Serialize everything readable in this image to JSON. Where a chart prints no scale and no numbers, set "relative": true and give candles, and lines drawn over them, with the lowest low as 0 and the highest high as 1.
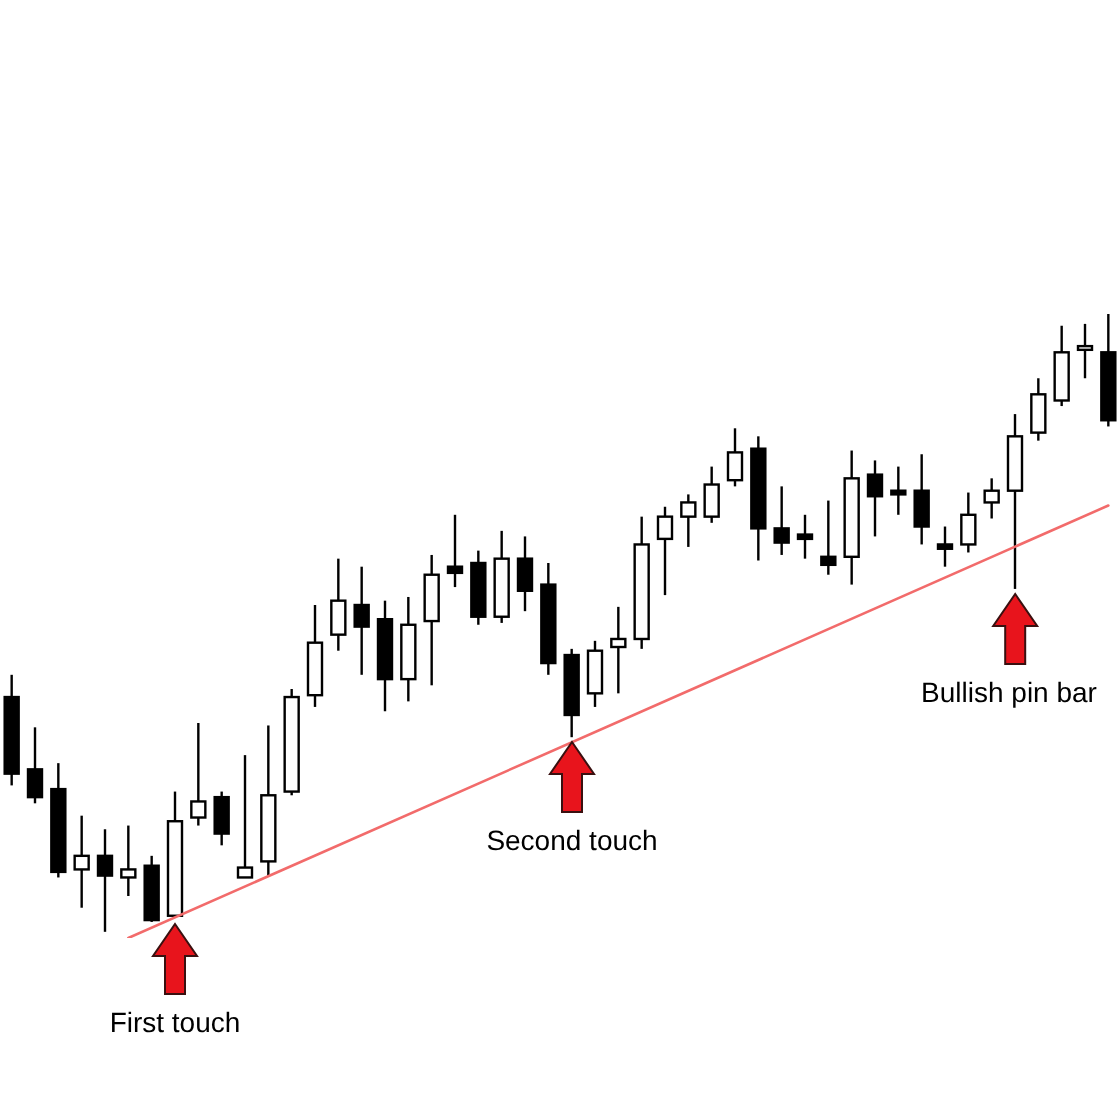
{
  "chart_data": {
    "type": "candlestick",
    "relative": true,
    "tick_labels": false,
    "categories": [
      null,
      null,
      null,
      null,
      null,
      null,
      null,
      null,
      null,
      null,
      null,
      null,
      null,
      null,
      null,
      null,
      null,
      null,
      null,
      null,
      null,
      null,
      null,
      null,
      null,
      null,
      null,
      null,
      null,
      null,
      null,
      null,
      null,
      null,
      null,
      null,
      null,
      null,
      null,
      null,
      null,
      null,
      null,
      null,
      null,
      null,
      null,
      null
    ],
    "series": [
      {
        "color": "#000000",
        "ohlc": [
          [
            0.38,
            0.416,
            0.237,
            0.256
          ],
          [
            0.263,
            0.331,
            0.208,
            0.218
          ],
          [
            0.231,
            0.273,
            0.088,
            0.097
          ],
          [
            0.101,
            0.188,
            0.039,
            0.123
          ],
          [
            0.123,
            0.166,
            0,
            0.091
          ],
          [
            0.088,
            0.172,
            0.058,
            0.101
          ],
          [
            0.107,
            0.123,
            0.016,
            0.019
          ],
          [
            0.026,
            0.227,
            0.023,
            0.179
          ],
          [
            0.185,
            0.338,
            0.172,
            0.211
          ],
          [
            0.218,
            0.227,
            0.14,
            0.159
          ],
          [
            0.088,
            0.286,
            0.088,
            0.104
          ],
          [
            0.114,
            0.334,
            0.091,
            0.221
          ],
          [
            0.227,
            0.393,
            0.221,
            0.38
          ],
          [
            0.383,
            0.529,
            0.364,
            0.468
          ],
          [
            0.481,
            0.604,
            0.455,
            0.536
          ],
          [
            0.529,
            0.591,
            0.416,
            0.494
          ],
          [
            0.506,
            0.536,
            0.357,
            0.409
          ],
          [
            0.409,
            0.542,
            0.373,
            0.497
          ],
          [
            0.503,
            0.61,
            0.399,
            0.578
          ],
          [
            0.591,
            0.675,
            0.558,
            0.581
          ],
          [
            0.597,
            0.617,
            0.497,
            0.51
          ],
          [
            0.51,
            0.649,
            0.5,
            0.604
          ],
          [
            0.604,
            0.64,
            0.519,
            0.552
          ],
          [
            0.562,
            0.597,
            0.416,
            0.435
          ],
          [
            0.448,
            0.458,
            0.315,
            0.351
          ],
          [
            0.386,
            0.471,
            0.364,
            0.455
          ],
          [
            0.461,
            0.526,
            0.386,
            0.474
          ],
          [
            0.474,
            0.672,
            0.458,
            0.627
          ],
          [
            0.636,
            0.688,
            0.545,
            0.672
          ],
          [
            0.672,
            0.708,
            0.623,
            0.695
          ],
          [
            0.672,
            0.753,
            0.662,
            0.724
          ],
          [
            0.731,
            0.815,
            0.721,
            0.776
          ],
          [
            0.782,
            0.802,
            0.601,
            0.653
          ],
          [
            0.653,
            0.721,
            0.61,
            0.63
          ],
          [
            0.643,
            0.675,
            0.604,
            0.636
          ],
          [
            0.607,
            0.698,
            0.578,
            0.594
          ],
          [
            0.607,
            0.779,
            0.562,
            0.734
          ],
          [
            0.74,
            0.763,
            0.64,
            0.705
          ],
          [
            0.714,
            0.753,
            0.675,
            0.708
          ],
          [
            0.714,
            0.773,
            0.627,
            0.656
          ],
          [
            0.627,
            0.656,
            0.591,
            0.62
          ],
          [
            0.627,
            0.711,
            0.614,
            0.675
          ],
          [
            0.695,
            0.734,
            0.669,
            0.714
          ],
          [
            0.714,
            0.838,
            0.555,
            0.802
          ],
          [
            0.808,
            0.896,
            0.795,
            0.87
          ],
          [
            0.86,
            0.981,
            0.851,
            0.938
          ],
          [
            0.942,
            0.984,
            0.896,
            0.948
          ],
          [
            0.938,
            1,
            0.818,
            0.828
          ]
        ]
      },
      {
        "type": "line",
        "color": "#f26b6b",
        "values": [
          null,
          null,
          null,
          null,
          null,
          -0.01,
          null,
          null,
          null,
          null,
          null,
          null,
          null,
          null,
          null,
          null,
          null,
          null,
          null,
          null,
          null,
          null,
          null,
          null,
          null,
          null,
          null,
          null,
          null,
          null,
          null,
          null,
          null,
          null,
          null,
          null,
          null,
          null,
          null,
          null,
          null,
          null,
          null,
          null,
          null,
          null,
          null,
          0.69
        ]
      }
    ],
    "annotations": [
      "First touch",
      "Second touch",
      "Bullish pin bar"
    ]
  }
}
